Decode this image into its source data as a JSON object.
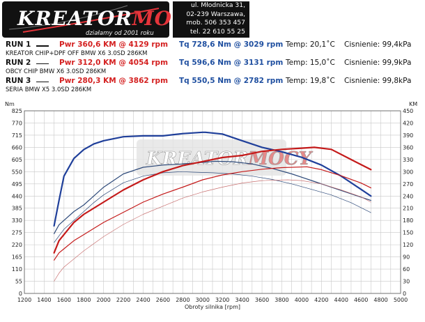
{
  "header": {
    "logo_part1": "KREATOR",
    "logo_part2": "MOCY",
    "logo_tagline": "działamy od 2001 roku",
    "address_line1": "ul. Młodnicka 31,",
    "address_line2": "02-239  Warszawa,",
    "phone_mobile": "mob.  506 353 457",
    "phone_tel": "tel.  22 610 55 25"
  },
  "runs": [
    {
      "label": "RUN 1",
      "pwr": "Pwr  360,6 KM @ 4129 rpm",
      "tq": "Tq 728,6 Nm @ 3029 rpm",
      "temp": "Temp: 20,1˚C",
      "pressure": "Cisnienie: 99,4kPa",
      "desc": "KREATOR CHIP+DPF OFF BMW X6 3.0SD 286KM"
    },
    {
      "label": "RUN 2",
      "pwr": "Pwr  312,0 KM @ 4054 rpm",
      "tq": "Tq 596,6 Nm @ 3131 rpm",
      "temp": "Temp: 15,0˚C",
      "pressure": "Cisnienie: 99,9kPa",
      "desc": "OBCY CHIP BMW X6 3.0SD 286KM"
    },
    {
      "label": "RUN 3",
      "pwr": "Pwr  280,3 KM @ 3862 rpm",
      "tq": "Tq 550,5 Nm @ 2782 rpm",
      "temp": "Temp: 19,8˚C",
      "pressure": "Cisnienie: 99,8kPa",
      "desc": "SERIA BMW X5 3.0SD 286KM"
    }
  ],
  "colors": {
    "power": "#d42020",
    "torque": "#1f3f9a"
  },
  "chart_data": {
    "type": "line",
    "xlabel": "Obroty silnika [rpm]",
    "ylabel_left": "Nm",
    "ylabel_right": "KM",
    "xlim": [
      1200,
      5000
    ],
    "ylim_left": [
      0,
      825
    ],
    "ylim_right": [
      0,
      450
    ],
    "x_ticks": [
      "1200",
      "1300",
      "1400",
      "1500",
      "1600",
      "1700",
      "1800",
      "1900",
      "2000",
      "2100",
      "2200",
      "2300",
      "2400",
      "2500",
      "2600",
      "2700",
      "2800",
      "2900",
      "3000",
      "3100",
      "3200",
      "3300",
      "3400",
      "3500",
      "3600",
      "3700",
      "3800",
      "3900",
      "4000",
      "4100",
      "4200",
      "4300",
      "4400",
      "4500",
      "4600",
      "4700",
      "4800",
      "4900",
      "5000"
    ],
    "x_tick_labels": [
      "1200",
      "1400",
      "1600",
      "1800",
      "2000",
      "2200",
      "2400",
      "2600",
      "2800",
      "3000",
      "3200",
      "3400",
      "3600",
      "3800",
      "4000",
      "4200",
      "4400",
      "4600",
      "4800",
      "5000"
    ],
    "y_left_ticks": [
      "0",
      "55",
      "110",
      "165",
      "220",
      "275",
      "330",
      "385",
      "440",
      "495",
      "550",
      "605",
      "660",
      "715",
      "770",
      "825"
    ],
    "y_right_ticks": [
      "0",
      "30",
      "60",
      "90",
      "120",
      "150",
      "180",
      "210",
      "240",
      "270",
      "300",
      "330",
      "360",
      "390",
      "420",
      "450"
    ],
    "grid": true,
    "series": [
      {
        "axis": "left",
        "style": "thick",
        "color": "#1f3f9a",
        "x": [
          1500,
          1550,
          1600,
          1700,
          1800,
          1900,
          2000,
          2200,
          2400,
          2600,
          2800,
          3000,
          3029,
          3200,
          3400,
          3600,
          3800,
          4000,
          4200,
          4400,
          4600,
          4700
        ],
        "y": [
          305,
          420,
          530,
          610,
          650,
          675,
          690,
          708,
          712,
          712,
          722,
          728,
          728,
          720,
          690,
          660,
          640,
          615,
          580,
          530,
          470,
          440
        ]
      },
      {
        "axis": "left",
        "style": "medium",
        "color": "#2e4a7a",
        "x": [
          1500,
          1550,
          1600,
          1700,
          1800,
          1900,
          2000,
          2200,
          2400,
          2600,
          2800,
          3000,
          3131,
          3300,
          3500,
          3700,
          3900,
          4100,
          4300,
          4500,
          4700
        ],
        "y": [
          270,
          310,
          330,
          370,
          400,
          440,
          480,
          540,
          570,
          580,
          585,
          592,
          597,
          595,
          585,
          565,
          540,
          510,
          480,
          450,
          420
        ]
      },
      {
        "axis": "left",
        "style": "thin",
        "color": "#2e4a7a",
        "x": [
          1500,
          1600,
          1700,
          1800,
          1900,
          2000,
          2200,
          2400,
          2600,
          2782,
          2900,
          3100,
          3300,
          3500,
          3700,
          3900,
          4100,
          4300,
          4500,
          4700
        ],
        "y": [
          230,
          290,
          330,
          370,
          410,
          445,
          500,
          530,
          545,
          550,
          548,
          545,
          540,
          530,
          515,
          495,
          470,
          445,
          410,
          365
        ]
      },
      {
        "axis": "right",
        "style": "thick",
        "color": "#c41a1a",
        "x": [
          1500,
          1550,
          1600,
          1700,
          1800,
          2000,
          2200,
          2400,
          2600,
          2800,
          3000,
          3200,
          3400,
          3600,
          3800,
          4000,
          4129,
          4300,
          4500,
          4700
        ],
        "y": [
          100,
          130,
          145,
          175,
          195,
          225,
          255,
          280,
          300,
          315,
          325,
          335,
          340,
          350,
          355,
          358,
          360,
          355,
          330,
          305
        ]
      },
      {
        "axis": "right",
        "style": "medium",
        "color": "#c41a1a",
        "x": [
          1500,
          1550,
          1600,
          1700,
          1800,
          2000,
          2200,
          2400,
          2600,
          2800,
          3000,
          3200,
          3400,
          3600,
          3800,
          4054,
          4200,
          4400,
          4600,
          4700
        ],
        "y": [
          82,
          100,
          110,
          130,
          145,
          175,
          200,
          225,
          245,
          262,
          280,
          292,
          300,
          306,
          310,
          312,
          305,
          290,
          272,
          260
        ]
      },
      {
        "axis": "right",
        "style": "thin",
        "color": "#c87070",
        "x": [
          1500,
          1550,
          1600,
          1700,
          1800,
          2000,
          2200,
          2400,
          2600,
          2800,
          3000,
          3200,
          3400,
          3600,
          3862,
          4000,
          4200,
          4400,
          4600,
          4700
        ],
        "y": [
          30,
          50,
          65,
          85,
          105,
          140,
          170,
          195,
          215,
          235,
          250,
          262,
          272,
          278,
          280,
          278,
          270,
          255,
          238,
          225
        ]
      }
    ]
  }
}
